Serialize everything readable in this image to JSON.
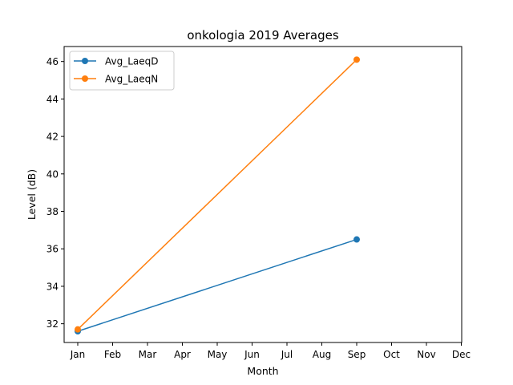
{
  "chart_data": {
    "type": "line",
    "title": "onkologia 2019 Averages",
    "xlabel": "Month",
    "ylabel": "Level (dB)",
    "x_ticks": [
      "Jan",
      "Feb",
      "Mar",
      "Apr",
      "May",
      "Jun",
      "Jul",
      "Aug",
      "Sep",
      "Oct",
      "Nov",
      "Dec"
    ],
    "y_ticks": [
      32,
      34,
      36,
      38,
      40,
      42,
      44,
      46
    ],
    "ylim": [
      31.0,
      46.8
    ],
    "grid": false,
    "legend_position": "top-left",
    "series": [
      {
        "name": "Avg_LaeqD",
        "color": "#1f77b4",
        "x": [
          "Jan",
          "Sep"
        ],
        "values": [
          31.6,
          36.5
        ]
      },
      {
        "name": "Avg_LaeqN",
        "color": "#ff7f0e",
        "x": [
          "Jan",
          "Sep"
        ],
        "values": [
          31.7,
          46.1
        ]
      }
    ]
  }
}
